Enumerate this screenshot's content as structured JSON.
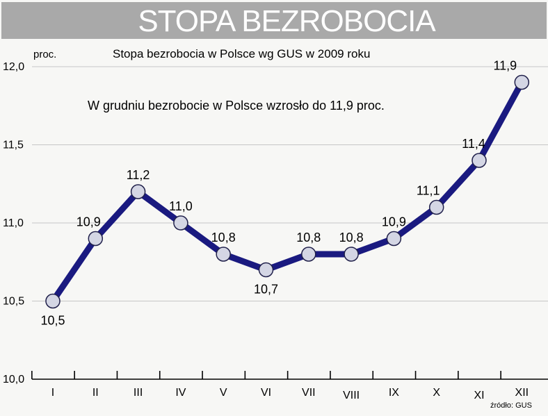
{
  "header": {
    "title": "STOPA BEZROBOCIA"
  },
  "chart_data": {
    "type": "line",
    "title": "Stopa bezrobocia w Polsce wg GUS w 2009 roku",
    "annotation": "W grudniu bezrobocie w Polsce wzrosło do 11,9 proc.",
    "ylabel": "proc.",
    "source": "źródło: GUS",
    "categories": [
      "I",
      "II",
      "III",
      "IV",
      "V",
      "VI",
      "VII",
      "VIII",
      "IX",
      "X",
      "XI",
      "XII"
    ],
    "values": [
      10.5,
      10.9,
      11.2,
      11.0,
      10.8,
      10.7,
      10.8,
      10.8,
      10.9,
      11.1,
      11.4,
      11.9
    ],
    "value_labels": [
      "10,5",
      "10,9",
      "11,2",
      "11,0",
      "10,8",
      "10,7",
      "10,8",
      "10,8",
      "10,9",
      "11,1",
      "11,4",
      "11,9"
    ],
    "label_positions": [
      "below",
      "above",
      "above",
      "above",
      "above",
      "below",
      "above",
      "above",
      "above",
      "above",
      "above",
      "above"
    ],
    "ylim": [
      10.0,
      12.0
    ],
    "yticks": [
      10.0,
      10.5,
      11.0,
      11.5,
      12.0
    ],
    "ytick_labels": [
      "10,0",
      "10,5",
      "11,0",
      "11,5",
      "12,0"
    ],
    "grid": "horizontal",
    "colors": {
      "line": "#1a1a80",
      "marker": "#d4d6e4",
      "grid": "#c6c6c6",
      "banner": "#a9a9a9"
    }
  }
}
